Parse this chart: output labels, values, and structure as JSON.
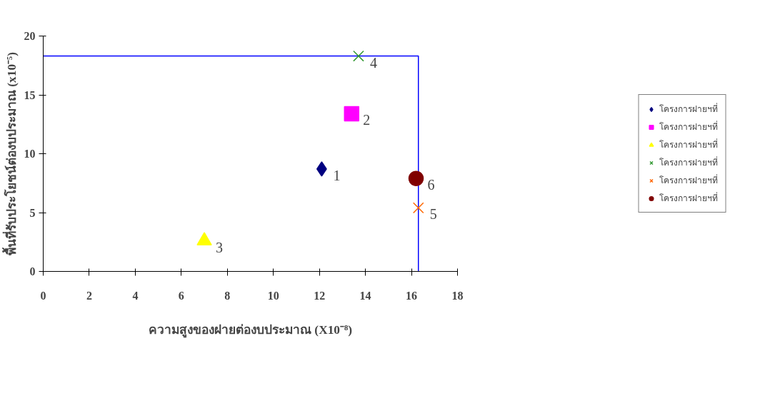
{
  "chart_data": {
    "type": "scatter",
    "xlabel": "ความสูงของฝายต่องบประมาณ (X10⁻⁸)",
    "ylabel": "พื้นที่รับประโยชน์ต่องบประมาณ (x10⁻⁵)",
    "xlim": [
      0,
      18
    ],
    "ylim": [
      0,
      20
    ],
    "xticks": [
      0,
      2,
      4,
      6,
      8,
      10,
      12,
      14,
      16,
      18
    ],
    "yticks": [
      0,
      5,
      10,
      15,
      20
    ],
    "grid": false,
    "legend": "right",
    "series": [
      {
        "type": "line",
        "x": [
          0,
          16.3,
          16.3
        ],
        "values": [
          18.3,
          18.3,
          0
        ],
        "color": "#0000ff"
      },
      {
        "name": "โครงการฝายฯที่",
        "x": [
          12.1
        ],
        "values": [
          8.7
        ],
        "color": "#000080",
        "marker": "diamond"
      },
      {
        "name": "โครงการฝายฯที่",
        "x": [
          13.4
        ],
        "values": [
          13.4
        ],
        "color": "#ff00ff",
        "marker": "square"
      },
      {
        "name": "โครงการฝายฯที่",
        "x": [
          7.0
        ],
        "values": [
          2.6
        ],
        "color": "#ffff00",
        "marker": "triangle"
      },
      {
        "name": "โครงการฝายฯที่",
        "x": [
          13.7
        ],
        "values": [
          18.3
        ],
        "color": "#339933",
        "marker": "cross"
      },
      {
        "name": "โครงการฝายฯที่",
        "x": [
          16.3
        ],
        "values": [
          5.4
        ],
        "color": "#ff6600",
        "marker": "cross"
      },
      {
        "name": "โครงการฝายฯที่",
        "x": [
          16.2
        ],
        "values": [
          7.9
        ],
        "color": "#800000",
        "marker": "circle"
      }
    ],
    "annotations": [
      {
        "text": "1",
        "x": 12.1,
        "y": 8.7
      },
      {
        "text": "2",
        "x": 13.4,
        "y": 13.4
      },
      {
        "text": "3",
        "x": 7.0,
        "y": 2.6
      },
      {
        "text": "4",
        "x": 13.7,
        "y": 18.3
      },
      {
        "text": "5",
        "x": 16.3,
        "y": 5.4
      },
      {
        "text": "6",
        "x": 16.2,
        "y": 7.9
      }
    ]
  }
}
